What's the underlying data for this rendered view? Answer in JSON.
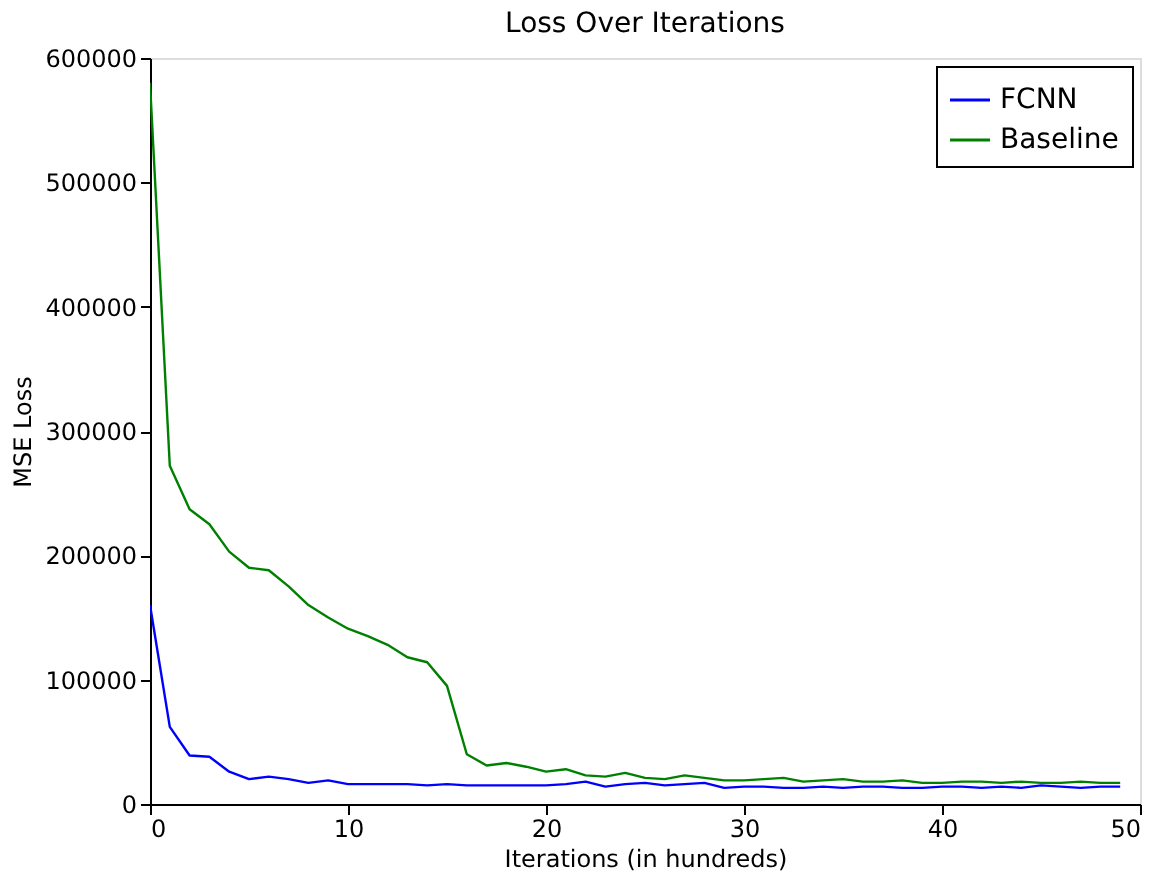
{
  "chart_data": {
    "type": "line",
    "title": "Loss Over Iterations",
    "xlabel": "Iterations (in hundreds)",
    "ylabel": "MSE Loss",
    "x": [
      0,
      1,
      2,
      3,
      4,
      5,
      6,
      7,
      8,
      9,
      10,
      11,
      12,
      13,
      14,
      15,
      16,
      17,
      18,
      19,
      20,
      21,
      22,
      23,
      24,
      25,
      26,
      27,
      28,
      29,
      30,
      31,
      32,
      33,
      34,
      35,
      36,
      37,
      38,
      39,
      40,
      41,
      42,
      43,
      44,
      45,
      46,
      47,
      48,
      49
    ],
    "series": [
      {
        "name": "FCNN",
        "color": "#0000ff",
        "values": [
          160000,
          62000,
          39000,
          38000,
          26000,
          20000,
          22000,
          20000,
          17000,
          19000,
          16000,
          16000,
          16000,
          16000,
          15000,
          16000,
          15000,
          15000,
          15000,
          15000,
          15000,
          16000,
          18000,
          14000,
          16000,
          17000,
          15000,
          16000,
          17000,
          13000,
          14000,
          14000,
          13000,
          13000,
          14000,
          13000,
          14000,
          14000,
          13000,
          13000,
          14000,
          14000,
          13000,
          14000,
          13000,
          15000,
          14000,
          13000,
          14000,
          14000
        ]
      },
      {
        "name": "Baseline",
        "color": "#008000",
        "values": [
          580000,
          272000,
          237000,
          225000,
          203000,
          190000,
          188000,
          175000,
          160000,
          150000,
          141000,
          135000,
          128000,
          118000,
          114000,
          95000,
          40000,
          31000,
          33000,
          30000,
          26000,
          28000,
          23000,
          22000,
          25000,
          21000,
          20000,
          23000,
          21000,
          19000,
          19000,
          20000,
          21000,
          18000,
          19000,
          20000,
          18000,
          18000,
          19000,
          17000,
          17000,
          18000,
          18000,
          17000,
          18000,
          17000,
          17000,
          18000,
          17000,
          17000
        ]
      }
    ],
    "xlim": [
      0,
      50
    ],
    "xticks": [
      0,
      10,
      20,
      30,
      40,
      50
    ],
    "ylim": [
      0,
      600000
    ],
    "yticks": [
      0,
      100000,
      200000,
      300000,
      400000,
      500000,
      600000
    ],
    "grid": false,
    "legend": "top right",
    "marker": "none",
    "line_style": "solid"
  }
}
